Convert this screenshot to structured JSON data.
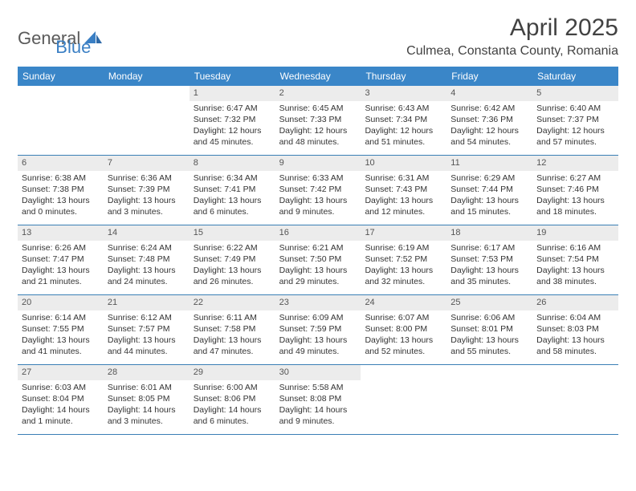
{
  "brand": {
    "part1": "General",
    "part2": "Blue"
  },
  "title": "April 2025",
  "location": "Culmea, Constanta County, Romania",
  "colors": {
    "header_bg": "#3a86c8",
    "week_border": "#3a7fb5",
    "daynum_bg": "#ececec",
    "brand_gray": "#5a5a5a",
    "brand_blue": "#3a7fc4",
    "text": "#333333"
  },
  "weekdays": [
    "Sunday",
    "Monday",
    "Tuesday",
    "Wednesday",
    "Thursday",
    "Friday",
    "Saturday"
  ],
  "weeks": [
    [
      {
        "empty": true
      },
      {
        "empty": true
      },
      {
        "n": "1",
        "sr": "6:47 AM",
        "ss": "7:32 PM",
        "dl": "12 hours and 45 minutes."
      },
      {
        "n": "2",
        "sr": "6:45 AM",
        "ss": "7:33 PM",
        "dl": "12 hours and 48 minutes."
      },
      {
        "n": "3",
        "sr": "6:43 AM",
        "ss": "7:34 PM",
        "dl": "12 hours and 51 minutes."
      },
      {
        "n": "4",
        "sr": "6:42 AM",
        "ss": "7:36 PM",
        "dl": "12 hours and 54 minutes."
      },
      {
        "n": "5",
        "sr": "6:40 AM",
        "ss": "7:37 PM",
        "dl": "12 hours and 57 minutes."
      }
    ],
    [
      {
        "n": "6",
        "sr": "6:38 AM",
        "ss": "7:38 PM",
        "dl": "13 hours and 0 minutes."
      },
      {
        "n": "7",
        "sr": "6:36 AM",
        "ss": "7:39 PM",
        "dl": "13 hours and 3 minutes."
      },
      {
        "n": "8",
        "sr": "6:34 AM",
        "ss": "7:41 PM",
        "dl": "13 hours and 6 minutes."
      },
      {
        "n": "9",
        "sr": "6:33 AM",
        "ss": "7:42 PM",
        "dl": "13 hours and 9 minutes."
      },
      {
        "n": "10",
        "sr": "6:31 AM",
        "ss": "7:43 PM",
        "dl": "13 hours and 12 minutes."
      },
      {
        "n": "11",
        "sr": "6:29 AM",
        "ss": "7:44 PM",
        "dl": "13 hours and 15 minutes."
      },
      {
        "n": "12",
        "sr": "6:27 AM",
        "ss": "7:46 PM",
        "dl": "13 hours and 18 minutes."
      }
    ],
    [
      {
        "n": "13",
        "sr": "6:26 AM",
        "ss": "7:47 PM",
        "dl": "13 hours and 21 minutes."
      },
      {
        "n": "14",
        "sr": "6:24 AM",
        "ss": "7:48 PM",
        "dl": "13 hours and 24 minutes."
      },
      {
        "n": "15",
        "sr": "6:22 AM",
        "ss": "7:49 PM",
        "dl": "13 hours and 26 minutes."
      },
      {
        "n": "16",
        "sr": "6:21 AM",
        "ss": "7:50 PM",
        "dl": "13 hours and 29 minutes."
      },
      {
        "n": "17",
        "sr": "6:19 AM",
        "ss": "7:52 PM",
        "dl": "13 hours and 32 minutes."
      },
      {
        "n": "18",
        "sr": "6:17 AM",
        "ss": "7:53 PM",
        "dl": "13 hours and 35 minutes."
      },
      {
        "n": "19",
        "sr": "6:16 AM",
        "ss": "7:54 PM",
        "dl": "13 hours and 38 minutes."
      }
    ],
    [
      {
        "n": "20",
        "sr": "6:14 AM",
        "ss": "7:55 PM",
        "dl": "13 hours and 41 minutes."
      },
      {
        "n": "21",
        "sr": "6:12 AM",
        "ss": "7:57 PM",
        "dl": "13 hours and 44 minutes."
      },
      {
        "n": "22",
        "sr": "6:11 AM",
        "ss": "7:58 PM",
        "dl": "13 hours and 47 minutes."
      },
      {
        "n": "23",
        "sr": "6:09 AM",
        "ss": "7:59 PM",
        "dl": "13 hours and 49 minutes."
      },
      {
        "n": "24",
        "sr": "6:07 AM",
        "ss": "8:00 PM",
        "dl": "13 hours and 52 minutes."
      },
      {
        "n": "25",
        "sr": "6:06 AM",
        "ss": "8:01 PM",
        "dl": "13 hours and 55 minutes."
      },
      {
        "n": "26",
        "sr": "6:04 AM",
        "ss": "8:03 PM",
        "dl": "13 hours and 58 minutes."
      }
    ],
    [
      {
        "n": "27",
        "sr": "6:03 AM",
        "ss": "8:04 PM",
        "dl": "14 hours and 1 minute."
      },
      {
        "n": "28",
        "sr": "6:01 AM",
        "ss": "8:05 PM",
        "dl": "14 hours and 3 minutes."
      },
      {
        "n": "29",
        "sr": "6:00 AM",
        "ss": "8:06 PM",
        "dl": "14 hours and 6 minutes."
      },
      {
        "n": "30",
        "sr": "5:58 AM",
        "ss": "8:08 PM",
        "dl": "14 hours and 9 minutes."
      },
      {
        "empty": true
      },
      {
        "empty": true
      },
      {
        "empty": true
      }
    ]
  ],
  "labels": {
    "sunrise": "Sunrise: ",
    "sunset": "Sunset: ",
    "daylight": "Daylight: "
  }
}
